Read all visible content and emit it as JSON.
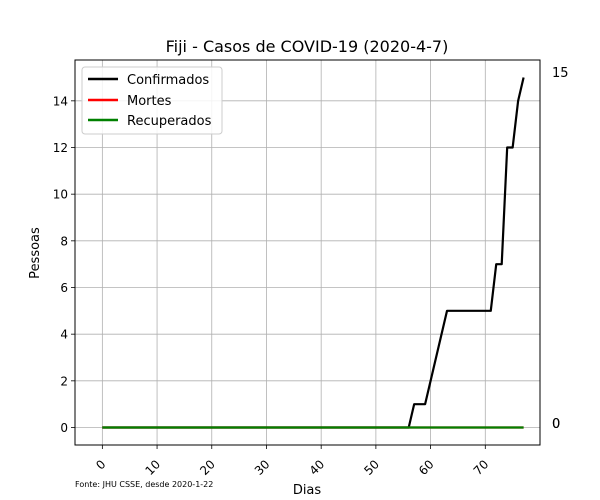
{
  "chart_data": {
    "type": "line",
    "title": "Fiji - Casos de COVID-19 (2020-4-7)",
    "xlabel": "Dias",
    "ylabel": "Pessoas",
    "xlim": [
      -5,
      80
    ],
    "ylim": [
      -0.75,
      15.75
    ],
    "xticks": [
      0,
      10,
      20,
      30,
      40,
      50,
      60,
      70
    ],
    "yticks": [
      0,
      2,
      4,
      6,
      8,
      10,
      12,
      14
    ],
    "grid": true,
    "legend_position": "top-left",
    "source_note": "Fonte: JHU CSSE, desde 2020-1-22",
    "right_labels": [
      "15",
      "0",
      "0"
    ],
    "series": [
      {
        "name": "Confirmados",
        "color": "#000000",
        "points": [
          [
            0,
            0
          ],
          [
            56,
            0
          ],
          [
            57,
            1
          ],
          [
            59,
            1
          ],
          [
            63,
            5
          ],
          [
            71,
            5
          ],
          [
            72,
            7
          ],
          [
            73,
            7
          ],
          [
            74,
            12
          ],
          [
            75,
            12
          ],
          [
            76,
            14
          ],
          [
            77,
            15
          ]
        ]
      },
      {
        "name": "Mortes",
        "color": "#ff0000",
        "points": [
          [
            0,
            0
          ],
          [
            77,
            0
          ]
        ]
      },
      {
        "name": "Recuperados",
        "color": "#008000",
        "points": [
          [
            0,
            0
          ],
          [
            77,
            0
          ]
        ]
      }
    ]
  }
}
